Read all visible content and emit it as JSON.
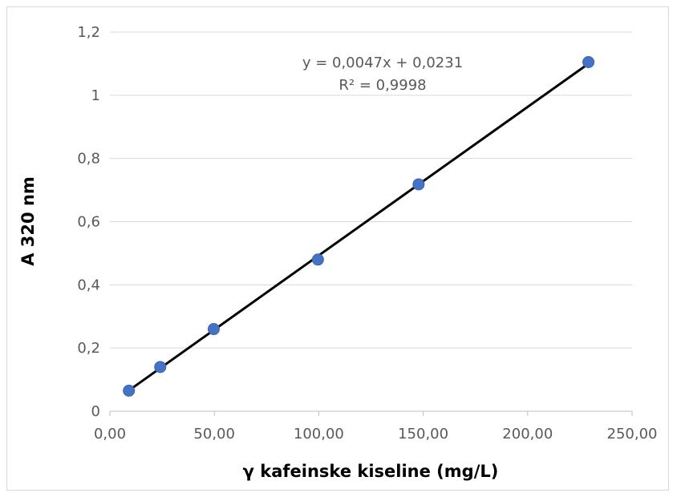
{
  "chart_data": {
    "type": "scatter",
    "title": "",
    "xlabel": "γ kafeinske kiseline (mg/L)",
    "ylabel": "A 320 nm",
    "xlim": [
      0,
      250
    ],
    "ylim": [
      0,
      1.2
    ],
    "x_ticks": [
      0,
      50,
      100,
      150,
      200,
      250
    ],
    "y_ticks": [
      0,
      0.2,
      0.4,
      0.6,
      0.8,
      1.0,
      1.2
    ],
    "x_tick_labels": [
      "0,00",
      "50,00",
      "100,00",
      "150,00",
      "200,00",
      "250,00"
    ],
    "y_tick_labels": [
      "0",
      "0,2",
      "0,4",
      "0,6",
      "0,8",
      "1",
      "1,2"
    ],
    "grid": {
      "horizontal": true,
      "vertical": false
    },
    "legend": "none",
    "series": [
      {
        "x": [
          9.1,
          24.1,
          49.7,
          99.6,
          147.8,
          229.1
        ],
        "y": [
          0.065,
          0.14,
          0.26,
          0.48,
          0.718,
          1.105
        ],
        "color": "#4472c4"
      }
    ],
    "trendline": {
      "slope": 0.0047,
      "intercept": 0.0231,
      "x_range": [
        9.1,
        229.1
      ],
      "color": "#000000"
    },
    "annotations": {
      "equation": "y = 0,0047x + 0,0231",
      "r_squared": "R² = 0,9998"
    }
  }
}
